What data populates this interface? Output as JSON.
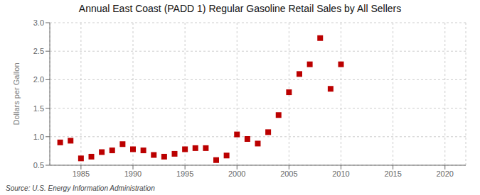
{
  "chart_data": {
    "type": "scatter",
    "title": "Annual East Coast (PADD 1) Regular Gasoline Retail Sales by All Sellers",
    "y_label": "Dollars per Gallon",
    "annotations": [
      "Source: U.S. Energy Information Administration"
    ],
    "x": [
      1983,
      1984,
      1985,
      1986,
      1987,
      1988,
      1989,
      1990,
      1991,
      1992,
      1993,
      1994,
      1995,
      1996,
      1997,
      1998,
      1999,
      2000,
      2001,
      2002,
      2003,
      2004,
      2005,
      2006,
      2007,
      2008,
      2009,
      2010
    ],
    "values": [
      0.9,
      0.93,
      0.62,
      0.65,
      0.73,
      0.76,
      0.87,
      0.78,
      0.76,
      0.68,
      0.65,
      0.7,
      0.78,
      0.8,
      0.8,
      0.59,
      0.67,
      1.04,
      0.96,
      0.88,
      1.08,
      1.38,
      1.78,
      2.1,
      2.27,
      2.73,
      1.84,
      2.27
    ],
    "color": "#bb0000",
    "marker": "square",
    "xlim": [
      1982,
      2022
    ],
    "ylim": [
      0.5,
      3.0
    ],
    "xticks": [
      1985,
      1990,
      1995,
      2000,
      2005,
      2010,
      2015,
      2020
    ],
    "yticks": [
      0.5,
      {
        "value": 1.0,
        "label": "1.0"
      },
      1.5,
      {
        "value": 2.0,
        "label": "2.0"
      },
      2.5,
      {
        "value": 3.0,
        "label": "3.0"
      }
    ],
    "grid": true
  }
}
